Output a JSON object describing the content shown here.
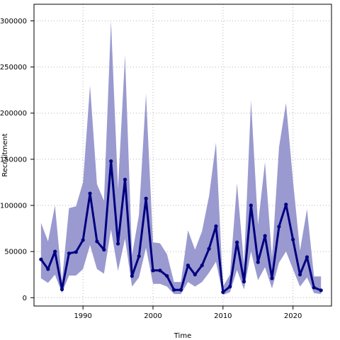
{
  "chart_data": {
    "type": "line",
    "title": "",
    "xlabel": "Time",
    "ylabel": "Recruitment",
    "xlim": [
      1983,
      2025.5
    ],
    "ylim": [
      -9000,
      318000
    ],
    "xticks": [
      1990,
      2000,
      2010,
      2020
    ],
    "yticks": [
      0,
      50000,
      100000,
      150000,
      200000,
      250000,
      300000
    ],
    "grid": true,
    "colors": {
      "line": "#000080",
      "band": "#9a9ad0",
      "grid": "#b4b4b4"
    },
    "series": [
      {
        "x": [
          1984,
          1985,
          1986,
          1987,
          1988,
          1989,
          1990,
          1991,
          1992,
          1993,
          1994,
          1995,
          1996,
          1997,
          1998,
          1999,
          2000,
          2001,
          2002,
          2003,
          2004,
          2005,
          2006,
          2007,
          2008,
          2009,
          2010,
          2011,
          2012,
          2013,
          2014,
          2015,
          2016,
          2017,
          2018,
          2019,
          2020,
          2021,
          2022,
          2023,
          2024
        ],
        "y": [
          41500,
          31000,
          50000,
          9000,
          48000,
          49500,
          62500,
          113000,
          61000,
          52000,
          148000,
          58500,
          128000,
          23500,
          45000,
          107500,
          29500,
          29500,
          23500,
          8500,
          8500,
          35000,
          25000,
          35000,
          53000,
          77500,
          6000,
          12000,
          60000,
          17500,
          100000,
          38500,
          67000,
          21000,
          77000,
          101000,
          63000,
          25000,
          44000,
          11000,
          8000
        ],
        "lower": [
          21000,
          16000,
          25000,
          5000,
          24000,
          24000,
          31000,
          57000,
          31000,
          26000,
          74000,
          29000,
          64000,
          12000,
          22000,
          54000,
          15000,
          15000,
          12000,
          4000,
          4000,
          17000,
          12000,
          17000,
          27000,
          39000,
          3000,
          6000,
          30000,
          9000,
          50000,
          19000,
          33000,
          10000,
          38000,
          50000,
          31000,
          12000,
          22000,
          5000,
          4000
        ],
        "upper": [
          81000,
          61000,
          100000,
          18000,
          97000,
          99000,
          125000,
          230000,
          123000,
          105000,
          300000,
          118000,
          263000,
          46000,
          90000,
          221000,
          60000,
          59000,
          47000,
          17000,
          17000,
          73000,
          52000,
          72000,
          110000,
          168000,
          12000,
          25000,
          124000,
          36000,
          214000,
          79000,
          147000,
          43000,
          163000,
          211000,
          127000,
          51000,
          96000,
          23000,
          23000
        ]
      }
    ]
  }
}
